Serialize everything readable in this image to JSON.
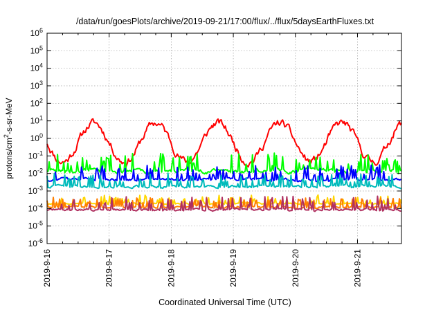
{
  "chart_data": {
    "type": "line",
    "title": "/data/run/goesPlots/archive/2019-09-21/17:00/flux/../flux/5daysEarthFluxes.txt",
    "xlabel": "Coordinated Universal Time (UTC)",
    "ylabel": {
      "pre": "protons/cm",
      "sup": "2",
      "post": "-s-sr-MeV"
    },
    "yscale": "log",
    "ylim": [
      1e-06,
      1000000.0
    ],
    "xlim": [
      "2019-09-16 00:00",
      "2019-09-21 17:00"
    ],
    "x_unit": "days after 2019-09-16 00:00 UTC",
    "xticks": [
      {
        "x": 0,
        "label": "2019-9-16"
      },
      {
        "x": 1,
        "label": "2019-9-17"
      },
      {
        "x": 2,
        "label": "2019-9-18"
      },
      {
        "x": 3,
        "label": "2019-9-19"
      },
      {
        "x": 4,
        "label": "2019-9-20"
      },
      {
        "x": 5,
        "label": "2019-9-21"
      }
    ],
    "yticks": [
      {
        "exp": -6,
        "label": "10",
        "sup": "-6"
      },
      {
        "exp": -5,
        "label": "10",
        "sup": "-5"
      },
      {
        "exp": -4,
        "label": "10",
        "sup": "-4"
      },
      {
        "exp": -3,
        "label": "10",
        "sup": "-3"
      },
      {
        "exp": -2,
        "label": "10",
        "sup": "-2"
      },
      {
        "exp": -1,
        "label": "10",
        "sup": "-1"
      },
      {
        "exp": 0,
        "label": "10",
        "sup": "0"
      },
      {
        "exp": 1,
        "label": "10",
        "sup": "1"
      },
      {
        "exp": 2,
        "label": "10",
        "sup": "2"
      },
      {
        "exp": 3,
        "label": "10",
        "sup": "3"
      },
      {
        "exp": 4,
        "label": "10",
        "sup": "4"
      },
      {
        "exp": 5,
        "label": "10",
        "sup": "5"
      },
      {
        "exp": 6,
        "label": "10",
        "sup": "6"
      }
    ],
    "grid": true,
    "series": [
      {
        "color": "#ff0000",
        "base": 0.6,
        "diurnal": 1.1,
        "phase": 0.75,
        "noise": 0.35,
        "spike": 0.0,
        "seed": 11
      },
      {
        "color": "#00ff00",
        "base": 0.014,
        "diurnal": 0.0,
        "phase": 0.0,
        "noise": 0.18,
        "spike": 0.75,
        "seed": 23
      },
      {
        "color": "#0000ff",
        "base": 0.0045,
        "diurnal": 0.0,
        "phase": 0.0,
        "noise": 0.12,
        "spike": 0.55,
        "seed": 37
      },
      {
        "color": "#00bbbb",
        "base": 0.0018,
        "diurnal": 0.0,
        "phase": 0.0,
        "noise": 0.12,
        "spike": 0.5,
        "seed": 41
      },
      {
        "color": "#ffd700",
        "base": 0.00019,
        "diurnal": 0.0,
        "phase": 0.0,
        "noise": 0.07,
        "spike": 0.35,
        "seed": 53
      },
      {
        "color": "#ff7f00",
        "base": 0.00012,
        "diurnal": 0.0,
        "phase": 0.0,
        "noise": 0.08,
        "spike": 0.4,
        "seed": 61
      },
      {
        "color": "#b03060",
        "base": 8.5e-05,
        "diurnal": 0.0,
        "phase": 0.0,
        "noise": 0.1,
        "spike": 0.55,
        "seed": 71
      }
    ]
  }
}
